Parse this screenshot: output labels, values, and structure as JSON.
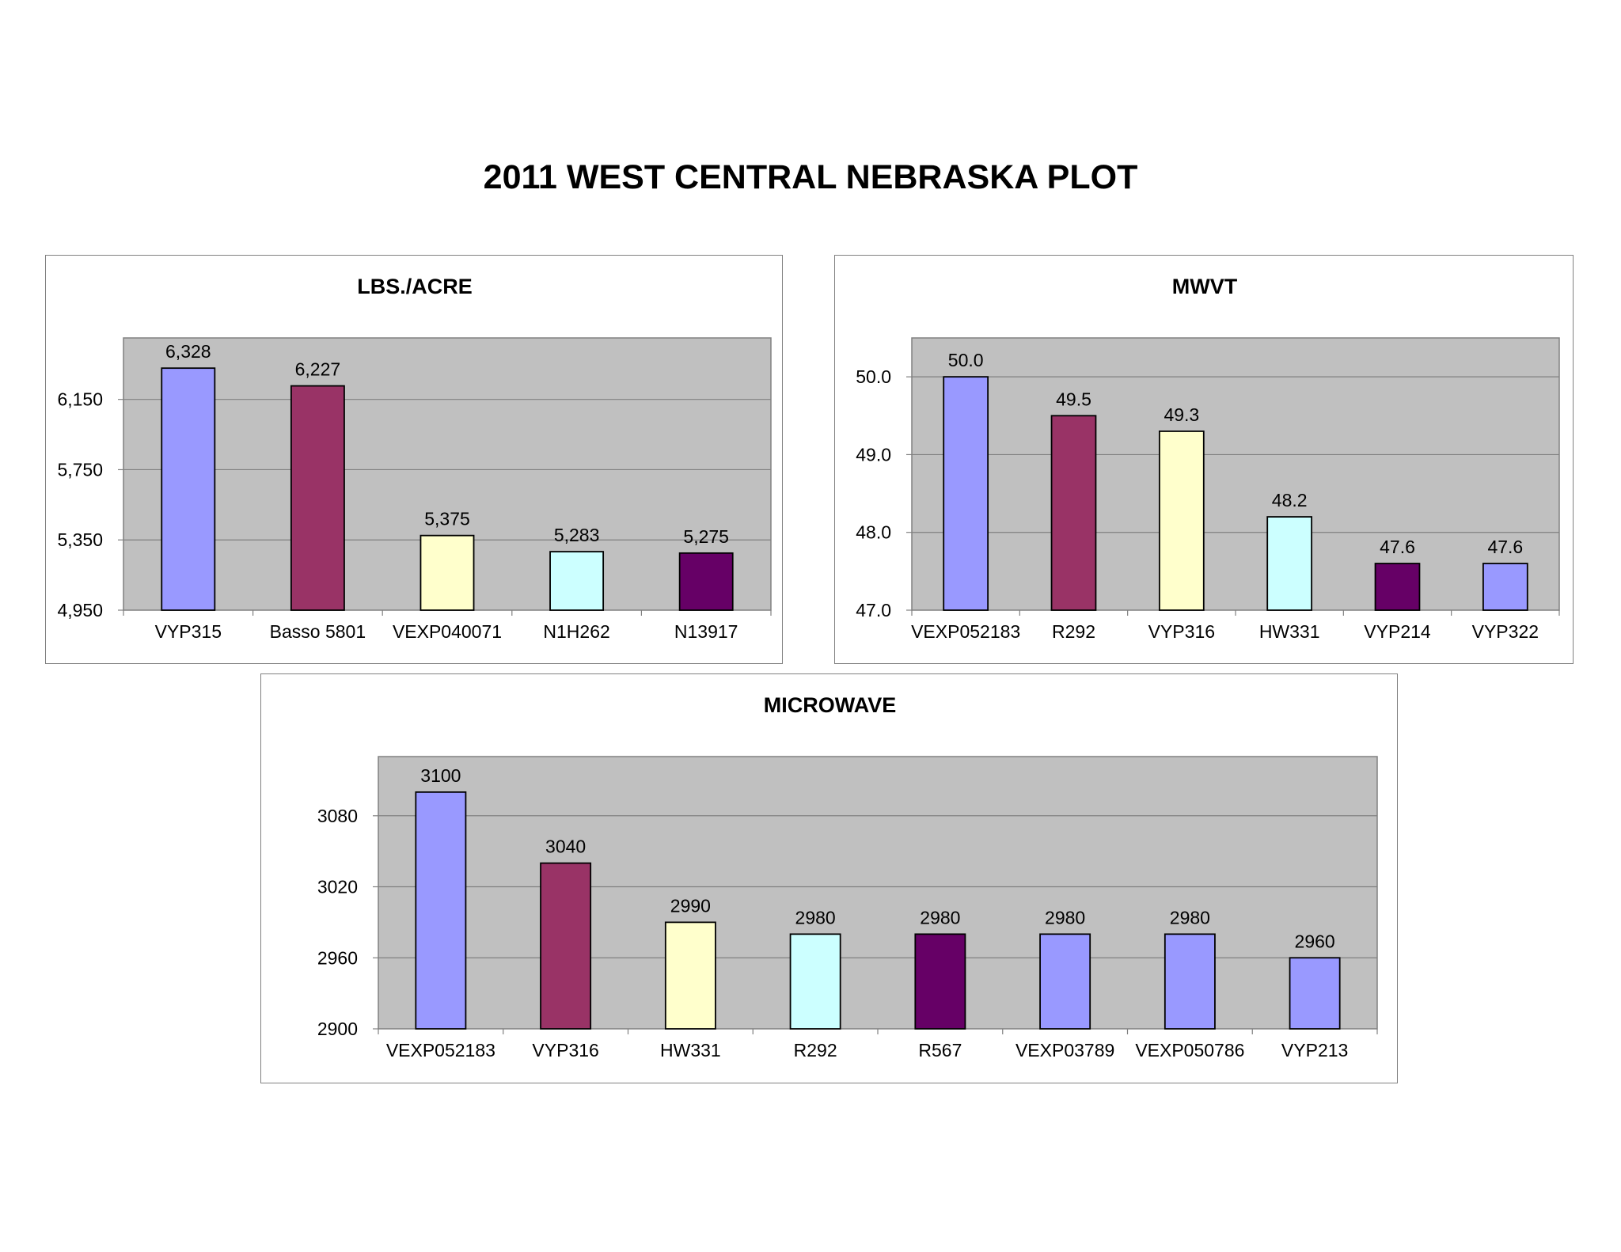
{
  "page_title": "2011 WEST CENTRAL NEBRASKA PLOT",
  "chart_data": [
    {
      "type": "bar",
      "title": "LBS./ACRE",
      "xlabel": "",
      "ylabel": "",
      "categories": [
        "VYP315",
        "Basso 5801",
        "VEXP040071",
        "N1H262",
        "N13917"
      ],
      "values": [
        6328,
        6227,
        5375,
        5283,
        5275
      ],
      "value_labels": [
        "6,328",
        "6,227",
        "5,375",
        "5,283",
        "5,275"
      ],
      "ylim": [
        4950,
        6500
      ],
      "yticks": [
        4950,
        5350,
        5750,
        6150
      ],
      "ytick_labels": [
        "4,950",
        "5,350",
        "5,750",
        "6,150"
      ],
      "bar_colors": [
        "#9999ff",
        "#993366",
        "#ffffcc",
        "#ccffff",
        "#660066"
      ],
      "plot_background": "#c0c0c0",
      "grid": true,
      "legend": "none"
    },
    {
      "type": "bar",
      "title": "MWVT",
      "xlabel": "",
      "ylabel": "",
      "categories": [
        "VEXP052183",
        "R292",
        "VYP316",
        "HW331",
        "VYP214",
        "VYP322"
      ],
      "values": [
        50.0,
        49.5,
        49.3,
        48.2,
        47.6,
        47.6
      ],
      "value_labels": [
        "50.0",
        "49.5",
        "49.3",
        "48.2",
        "47.6",
        "47.6"
      ],
      "ylim": [
        47.0,
        50.5
      ],
      "yticks": [
        47.0,
        48.0,
        49.0,
        50.0
      ],
      "ytick_labels": [
        "47.0",
        "48.0",
        "49.0",
        "50.0"
      ],
      "bar_colors": [
        "#9999ff",
        "#993366",
        "#ffffcc",
        "#ccffff",
        "#660066",
        "#9999ff"
      ],
      "plot_background": "#c0c0c0",
      "grid": true,
      "legend": "none"
    },
    {
      "type": "bar",
      "title": "MICROWAVE",
      "xlabel": "",
      "ylabel": "",
      "categories": [
        "VEXP052183",
        "VYP316",
        "HW331",
        "R292",
        "R567",
        "VEXP03789",
        "VEXP050786",
        "VYP213"
      ],
      "values": [
        3100,
        3040,
        2990,
        2980,
        2980,
        2980,
        2980,
        2960
      ],
      "value_labels": [
        "3100",
        "3040",
        "2990",
        "2980",
        "2980",
        "2980",
        "2980",
        "2960"
      ],
      "ylim": [
        2900,
        3130
      ],
      "yticks": [
        2900,
        2960,
        3020,
        3080
      ],
      "ytick_labels": [
        "2900",
        "2960",
        "3020",
        "3080"
      ],
      "bar_colors": [
        "#9999ff",
        "#993366",
        "#ffffcc",
        "#ccffff",
        "#660066",
        "#9999ff",
        "#9999ff",
        "#9999ff"
      ],
      "plot_background": "#c0c0c0",
      "grid": true,
      "legend": "none"
    }
  ]
}
